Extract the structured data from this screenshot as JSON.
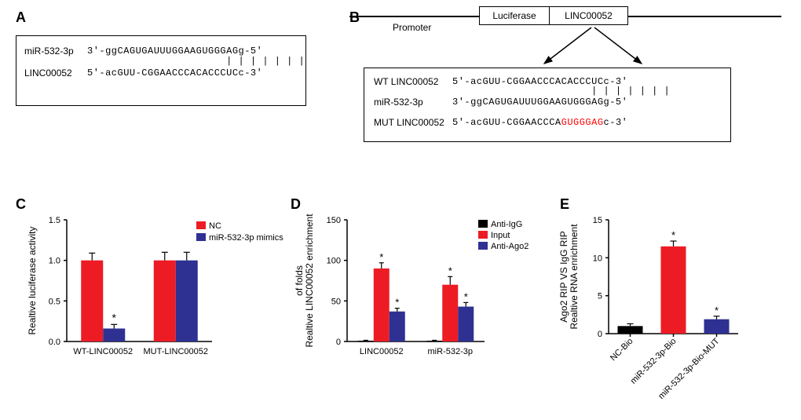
{
  "labels": {
    "A": "A",
    "B": "B",
    "C": "C",
    "D": "D",
    "E": "E"
  },
  "panelA": {
    "mir_label": "miR-532-3p",
    "mir_seq": "3'-ggCAGUGAUUUGGAAGUGGGAGg-5'",
    "linc_label": "LINC00052",
    "linc_seq": "5'-acGUU-CGGAACCCACACCCUCc-3'",
    "bars": "                       | | | | | | |"
  },
  "panelB": {
    "promoter": "Promoter",
    "luciferase": "Luciferase",
    "linc": "LINC00052",
    "wt_label": "WT LINC00052",
    "wt_seq": "5'-acGUU-CGGAACCCACACCCUCc-3'",
    "mir_label": "miR-532-3p",
    "mir_seq": "3'-ggCAGUGAUUUGGAAGUGGGAGg-5'",
    "mut_label": "MUT LINC00052",
    "mut_seq_pre": "5'-acGUU-CGGAACCCA",
    "mut_seq_red": "GUGGGAG",
    "mut_seq_post": "c-3'",
    "bars": "                       | | | | | | |"
  },
  "chartC": {
    "type": "bar",
    "y_title": "Realtive luciferase activity",
    "y_max": 1.5,
    "y_step": 0.5,
    "categories": [
      "WT-LINC00052",
      "MUT-LINC00052"
    ],
    "series": [
      {
        "name": "NC",
        "color": "#ed1c24",
        "values": [
          1.0,
          1.0
        ],
        "err": [
          0.09,
          0.1
        ]
      },
      {
        "name": "miR-532-3p mimics",
        "color": "#2e3192",
        "values": [
          0.16,
          1.0
        ],
        "err": [
          0.05,
          0.1
        ]
      }
    ],
    "sig": [
      "*"
    ],
    "bar_width": 0.35,
    "bg": "#ffffff"
  },
  "chartD": {
    "type": "bar",
    "y_title": "Realtive LINC00052 enrichment\nof folds",
    "y_max": 150,
    "y_step": 50,
    "categories": [
      "LINC00052",
      "miR-532-3p"
    ],
    "series": [
      {
        "name": "Anti-IgG",
        "color": "#000000",
        "values": [
          1,
          1
        ],
        "err": [
          0.5,
          0.5
        ]
      },
      {
        "name": "Input",
        "color": "#ed1c24",
        "values": [
          90,
          70
        ],
        "err": [
          7,
          10
        ]
      },
      {
        "name": "Anti-Ago2",
        "color": "#2e3192",
        "values": [
          37,
          43
        ],
        "err": [
          4,
          5
        ]
      }
    ],
    "sig": [
      "*",
      "*",
      "*",
      "*"
    ],
    "bar_width": 0.25,
    "bg": "#ffffff"
  },
  "chartE": {
    "type": "bar",
    "y_title": "Realtive RNA enrichment\nAgo2 RIP VS IgG RIP",
    "y_max": 15,
    "y_step": 5,
    "categories": [
      "NC-Bio",
      "miR-532-3p-Bio",
      "miR-532-3p-Bio-MUT"
    ],
    "colors": [
      "#000000",
      "#ed1c24",
      "#2e3192"
    ],
    "values": [
      1.0,
      11.5,
      1.9
    ],
    "err": [
      0.3,
      0.7,
      0.4
    ],
    "sig_positions": [
      1,
      2
    ],
    "bar_width": 0.55,
    "bg": "#ffffff"
  },
  "style": {
    "axis_color": "#000000",
    "font_axis": 11,
    "font_title": 12
  }
}
